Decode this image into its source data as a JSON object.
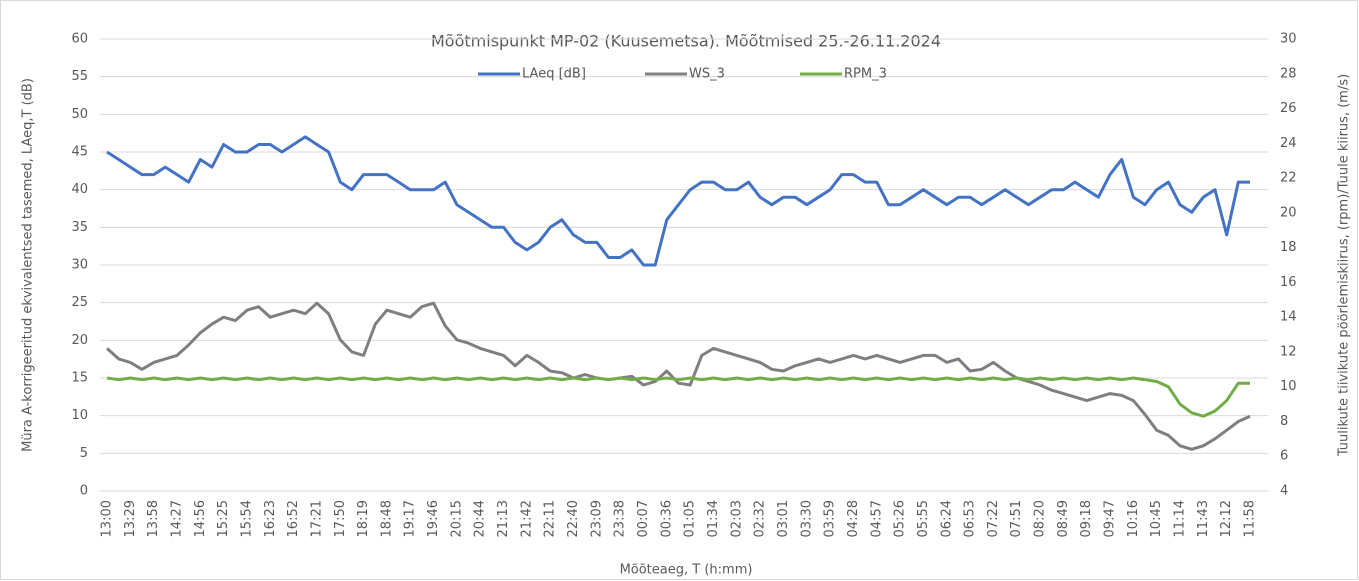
{
  "chart_data": {
    "type": "line",
    "title": "Mõõtmispunkt MP-02 (Kuusemetsa). Mõõtmised 25.-26.11.2024",
    "x_label": "Mõõteaeg, T (h:mm)",
    "y_label": "Müra A-korrigeeritud ekvivalentsed tasemed, LAeq,T (dB)",
    "y2_label": "Tuulikute tiivikute pöörlemiskiirus, (rpm)/Tuule kiirus, (m/s)",
    "categories": [
      "13:00",
      null,
      "13:29",
      null,
      "13:58",
      null,
      "14:27",
      null,
      "14:56",
      null,
      "15:25",
      null,
      "15:54",
      null,
      "16:23",
      null,
      "16:52",
      null,
      "17:21",
      null,
      "17:50",
      null,
      "18:19",
      null,
      "18:48",
      null,
      "19:17",
      null,
      "19:46",
      null,
      "20:15",
      null,
      "20:44",
      null,
      "21:13",
      null,
      "21:42",
      null,
      "22:11",
      null,
      "22:40",
      null,
      "23:09",
      null,
      "23:38",
      null,
      "00:07",
      null,
      "00:36",
      null,
      "01:05",
      null,
      "01:34",
      null,
      "02:03",
      null,
      "02:32",
      null,
      "03:01",
      null,
      "03:30",
      null,
      "03:59",
      null,
      "04:28",
      null,
      "04:57",
      null,
      "05:26",
      null,
      "05:55",
      null,
      "06:24",
      null,
      "06:53",
      null,
      "07:22",
      null,
      "07:51",
      null,
      "08:20",
      null,
      "08:49",
      null,
      "09:18",
      null,
      "09:47",
      null,
      "10:16",
      null,
      "10:45",
      null,
      "11:14",
      null,
      "11:43",
      null,
      "12:12",
      null,
      "11:58"
    ],
    "series": [
      {
        "name": "LAeq [dB]",
        "color": "#4472c4",
        "axis": "y",
        "values": [
          45,
          44,
          43,
          42,
          42,
          43,
          42,
          41,
          44,
          43,
          46,
          45,
          45,
          46,
          46,
          45,
          46,
          47,
          46,
          45,
          41,
          40,
          42,
          42,
          42,
          41,
          40,
          40,
          40,
          41,
          38,
          37,
          36,
          35,
          35,
          33,
          32,
          33,
          35,
          36,
          34,
          33,
          33,
          31,
          31,
          32,
          30,
          30,
          36,
          38,
          40,
          41,
          41,
          40,
          40,
          41,
          39,
          38,
          39,
          39,
          38,
          39,
          40,
          42,
          42,
          41,
          41,
          38,
          38,
          39,
          40,
          39,
          38,
          39,
          39,
          38,
          39,
          40,
          39,
          38,
          39,
          40,
          40,
          41,
          40,
          39,
          42,
          44,
          39,
          38,
          40,
          41,
          38,
          37,
          39,
          40,
          34,
          41,
          41
        ]
      },
      {
        "name": "WS_3",
        "color": "#7f7f7f",
        "axis": "y2",
        "values": [
          12.2,
          11.6,
          11.4,
          11.0,
          11.4,
          11.6,
          11.8,
          12.4,
          13.1,
          13.6,
          14.0,
          13.8,
          14.4,
          14.6,
          14.0,
          14.2,
          14.4,
          14.2,
          14.8,
          14.2,
          12.7,
          12.0,
          11.8,
          13.6,
          14.4,
          14.2,
          14.0,
          14.6,
          14.8,
          13.5,
          12.7,
          12.5,
          12.2,
          12.0,
          11.8,
          11.2,
          11.8,
          11.4,
          10.9,
          10.8,
          10.5,
          10.7,
          10.5,
          10.4,
          10.5,
          10.6,
          10.1,
          10.3,
          10.9,
          10.2,
          10.1,
          11.8,
          12.2,
          12.0,
          11.8,
          11.6,
          11.4,
          11.0,
          10.9,
          11.2,
          11.4,
          11.6,
          11.4,
          11.6,
          11.8,
          11.6,
          11.8,
          11.6,
          11.4,
          11.6,
          11.8,
          11.8,
          11.4,
          11.6,
          10.9,
          11.0,
          11.4,
          10.9,
          10.5,
          10.3,
          10.1,
          9.8,
          9.6,
          9.4,
          9.2,
          9.4,
          9.6,
          9.5,
          9.2,
          8.4,
          7.5,
          7.2,
          6.6,
          6.4,
          6.6,
          7.0,
          7.5,
          8.0,
          8.3
        ]
      },
      {
        "name": "RPM_3",
        "color": "#70ad47",
        "axis": "y2",
        "values": [
          10.5,
          10.4,
          10.5,
          10.4,
          10.5,
          10.4,
          10.5,
          10.4,
          10.5,
          10.4,
          10.5,
          10.4,
          10.5,
          10.4,
          10.5,
          10.4,
          10.5,
          10.4,
          10.5,
          10.4,
          10.5,
          10.4,
          10.5,
          10.4,
          10.5,
          10.4,
          10.5,
          10.4,
          10.5,
          10.4,
          10.5,
          10.4,
          10.5,
          10.4,
          10.5,
          10.4,
          10.5,
          10.4,
          10.5,
          10.4,
          10.5,
          10.4,
          10.5,
          10.4,
          10.5,
          10.4,
          10.5,
          10.4,
          10.5,
          10.4,
          10.5,
          10.4,
          10.5,
          10.4,
          10.5,
          10.4,
          10.5,
          10.4,
          10.5,
          10.4,
          10.5,
          10.4,
          10.5,
          10.4,
          10.5,
          10.4,
          10.5,
          10.4,
          10.5,
          10.4,
          10.5,
          10.4,
          10.5,
          10.4,
          10.5,
          10.4,
          10.5,
          10.4,
          10.5,
          10.4,
          10.5,
          10.4,
          10.5,
          10.4,
          10.5,
          10.4,
          10.5,
          10.4,
          10.5,
          10.4,
          10.3,
          10.0,
          9.0,
          8.5,
          8.3,
          8.6,
          9.2,
          10.2,
          10.2
        ]
      }
    ],
    "ylim": [
      0,
      60
    ],
    "yticks": [
      0,
      5,
      10,
      15,
      20,
      25,
      30,
      35,
      40,
      45,
      50,
      55,
      60
    ],
    "y2lim": [
      4,
      30
    ],
    "y2ticks": [
      4,
      6,
      8,
      10,
      12,
      14,
      16,
      18,
      20,
      22,
      24,
      26,
      28,
      30
    ],
    "grid": true,
    "legend": "top"
  }
}
